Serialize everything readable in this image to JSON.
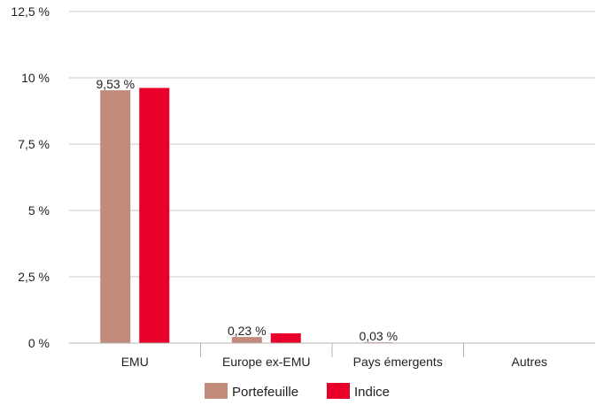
{
  "chart_data": {
    "type": "bar",
    "categories": [
      "EMU",
      "Europe ex-EMU",
      "Pays émergents",
      "Autres"
    ],
    "series": [
      {
        "name": "Portefeuille",
        "values": [
          9.53,
          0.23,
          0.03,
          0
        ],
        "color": "#c18a7b",
        "labels": [
          "9,53 %",
          "0,23 %",
          "0,03 %",
          ""
        ]
      },
      {
        "name": "Indice",
        "values": [
          9.62,
          0.37,
          0,
          0
        ],
        "color": "#e8002a"
      }
    ],
    "y_ticks": [
      "0 %",
      "2,5 %",
      "5 %",
      "7,5 %",
      "10 %",
      "12,5 %"
    ],
    "ylim": [
      0,
      12.5
    ],
    "ytick_step": 2.5,
    "grid": true,
    "legend_position": "bottom"
  }
}
